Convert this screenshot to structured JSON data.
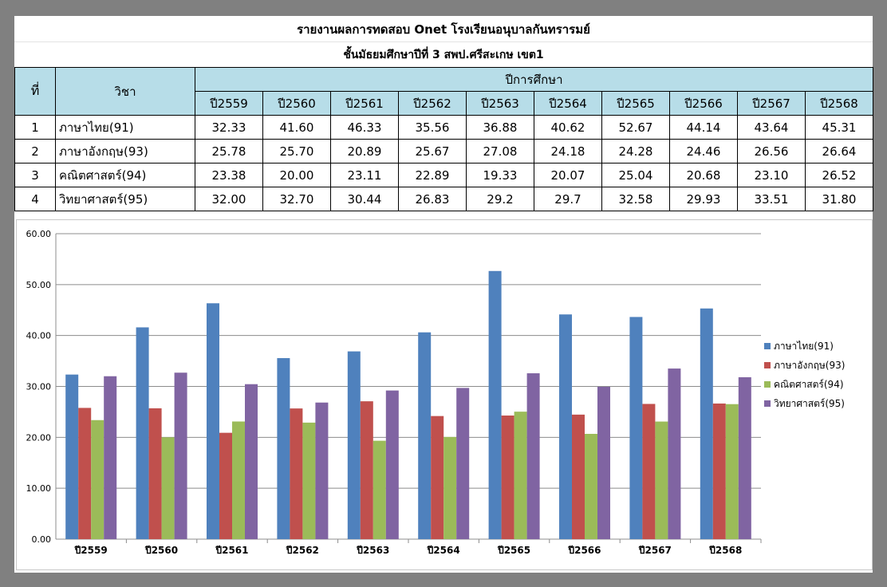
{
  "sheet": {
    "title": "รายงานผลการทดสอบ Onet  โรงเรียนอนุบาลกันทรารมย์",
    "subtitle": "ชั้นมัธยมศึกษาปีที่ 3  สพป.ศรีสะเกษ เขต1"
  },
  "table": {
    "header_no": "ที่",
    "header_subject": "วิชา",
    "header_year_group": "ปีการศึกษา",
    "years": [
      "ปี2559",
      "ปี2560",
      "ปี2561",
      "ปี2562",
      "ปี2563",
      "ปี2564",
      "ปี2565",
      "ปี2566",
      "ปี2567",
      "ปี2568"
    ],
    "rows": [
      {
        "no": "1",
        "subject": "ภาษาไทย(91)",
        "scores": [
          "32.33",
          "41.60",
          "46.33",
          "35.56",
          "36.88",
          "40.62",
          "52.67",
          "44.14",
          "43.64",
          "45.31"
        ]
      },
      {
        "no": "2",
        "subject": "ภาษาอังกฤษ(93)",
        "scores": [
          "25.78",
          "25.70",
          "20.89",
          "25.67",
          "27.08",
          "24.18",
          "24.28",
          "24.46",
          "26.56",
          "26.64"
        ]
      },
      {
        "no": "3",
        "subject": "คณิตศาสตร์(94)",
        "scores": [
          "23.38",
          "20.00",
          "23.11",
          "22.89",
          "19.33",
          "20.07",
          "25.04",
          "20.68",
          "23.10",
          "26.52"
        ]
      },
      {
        "no": "4",
        "subject": "วิทยาศาสตร์(95)",
        "scores": [
          "32.00",
          "32.70",
          "30.44",
          "26.83",
          "29.2",
          "29.7",
          "32.58",
          "29.93",
          "33.51",
          "31.80"
        ]
      }
    ]
  },
  "chart_data": {
    "type": "bar",
    "categories": [
      "ปี2559",
      "ปี2560",
      "ปี2561",
      "ปี2562",
      "ปี2563",
      "ปี2564",
      "ปี2565",
      "ปี2566",
      "ปี2567",
      "ปี2568"
    ],
    "series": [
      {
        "name": "ภาษาไทย(91)",
        "color": "#4f81bd",
        "values": [
          32.33,
          41.6,
          46.33,
          35.56,
          36.88,
          40.62,
          52.67,
          44.14,
          43.64,
          45.31
        ]
      },
      {
        "name": "ภาษาอังกฤษ(93)",
        "color": "#c0504d",
        "values": [
          25.78,
          25.7,
          20.89,
          25.67,
          27.08,
          24.18,
          24.28,
          24.46,
          26.56,
          26.64
        ]
      },
      {
        "name": "คณิตศาสตร์(94)",
        "color": "#9bbb59",
        "values": [
          23.38,
          20.0,
          23.11,
          22.89,
          19.33,
          20.07,
          25.04,
          20.68,
          23.1,
          26.52
        ]
      },
      {
        "name": "วิทยาศาสตร์(95)",
        "color": "#8064a2",
        "values": [
          32.0,
          32.7,
          30.44,
          26.83,
          29.2,
          29.7,
          32.58,
          29.93,
          33.51,
          31.8
        ]
      }
    ],
    "ylim": [
      0,
      60
    ],
    "yticks": [
      "0.00",
      "10.00",
      "20.00",
      "30.00",
      "40.00",
      "50.00",
      "60.00"
    ],
    "grid": true,
    "legend_position": "right"
  }
}
